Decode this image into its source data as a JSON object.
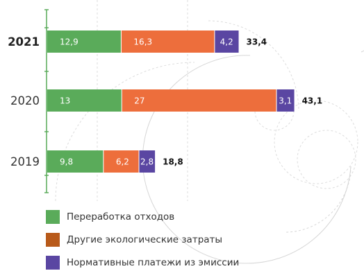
{
  "chart_data": {
    "type": "bar",
    "orientation": "horizontal",
    "stacked": true,
    "categories": [
      "2021",
      "2020",
      "2019"
    ],
    "highlight_category": "2021",
    "series": [
      {
        "name": "Переработка отходов",
        "color": "#5aab5a",
        "values": [
          12.9,
          13,
          9.8
        ],
        "labels": [
          "12,9",
          "13",
          "9,8"
        ]
      },
      {
        "name": "Другие экологические затраты",
        "color": "#ed6e3c",
        "values": [
          16.3,
          27,
          6.2
        ],
        "labels": [
          "16,3",
          "27",
          "6,2"
        ]
      },
      {
        "name": "Нормативные платежи из эмиссии",
        "color": "#5a46a2",
        "values": [
          4.2,
          3.1,
          2.8
        ],
        "labels": [
          "4,2",
          "3,1",
          "2,8"
        ]
      }
    ],
    "totals": [
      33.4,
      43.1,
      18.8
    ],
    "total_labels": [
      "33,4",
      "43,1",
      "18,8"
    ],
    "legend_swatch_colors": [
      "#5aab5a",
      "#b85a1a",
      "#5a46a2"
    ],
    "axis_color": "#5aab5a",
    "grid": false,
    "legend_position": "bottom-left"
  }
}
